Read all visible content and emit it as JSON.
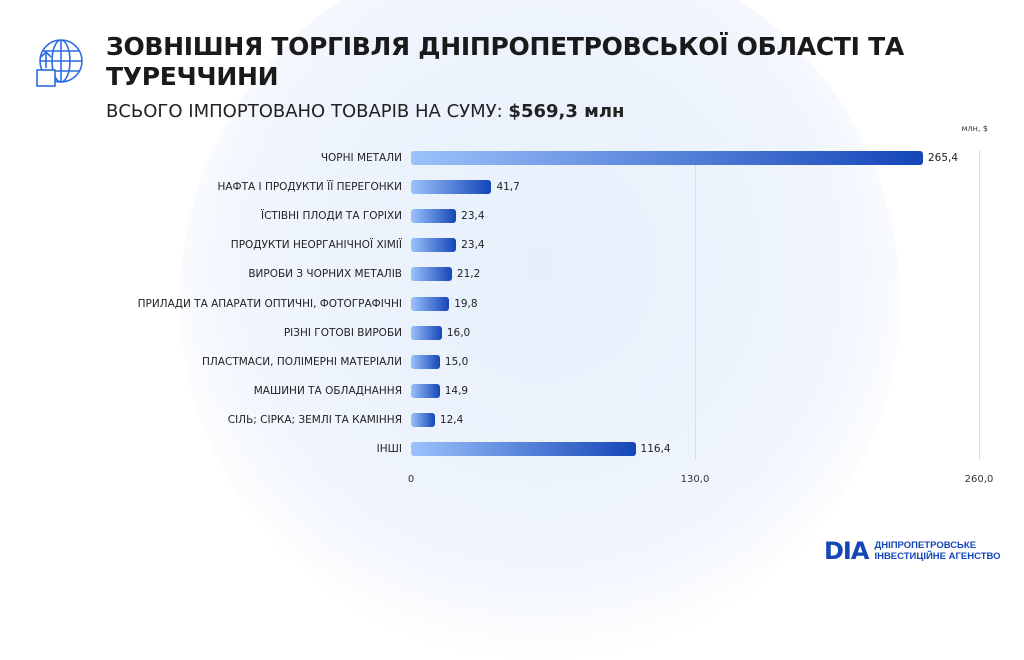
{
  "header": {
    "title": "ЗОВНІШНЯ ТОРГІВЛЯ ДНІПРОПЕТРОВСЬКОЇ ОБЛАСТІ ТА ТУРЕЧЧИНИ",
    "subtitle_prefix": "ВСЬОГО ІМПОРТОВАНО ТОВАРІВ НА СУМУ:",
    "subtitle_value": "$569,3 млн",
    "icon": "globe-upload-box-icon"
  },
  "logo": {
    "mark": "DIA",
    "line1": "ДНІПРОПЕТРОВСЬКЕ",
    "line2": "ІНВЕСТИЦІЙНЕ АГЕНСТВО"
  },
  "chart_data": {
    "type": "bar",
    "orientation": "horizontal",
    "unit": "млн, $",
    "categories": [
      "ЧОРНІ МЕТАЛИ",
      "НАФТА І ПРОДУКТИ ЇЇ ПЕРЕГОНКИ",
      "ЇСТІВНІ ПЛОДИ ТА ГОРІХИ",
      "ПРОДУКТИ НЕОРГАНІЧНОЇ ХІМІЇ",
      "ВИРОБИ З ЧОРНИХ МЕТАЛІВ",
      "ПРИЛАДИ ТА АПАРАТИ ОПТИЧНІ, ФОТОГРАФІЧНІ",
      "РІЗНІ ГОТОВІ ВИРОБИ",
      "ПЛАСТМАСИ, ПОЛІМЕРНІ МАТЕРІАЛИ",
      "МАШИНИ ТА ОБЛАДНАННЯ",
      "СІЛЬ; СІРКА; ЗЕМЛІ ТА КАМІННЯ",
      "ІНШІ"
    ],
    "values": [
      265.4,
      41.7,
      23.4,
      23.4,
      21.2,
      19.8,
      16.0,
      15.0,
      14.9,
      12.4,
      116.4
    ],
    "data_labels": [
      "265,4",
      "41,7",
      "23,4",
      "23,4",
      "21,2",
      "19,8",
      "16,0",
      "15,0",
      "14,9",
      "12,4",
      "116,4"
    ],
    "ticks": [
      "0",
      "130,0",
      "260,0"
    ],
    "xlim": [
      0,
      260
    ],
    "grid": true,
    "colors": {
      "bar_start": "#9cc2fb",
      "bar_end": "#1446b8"
    }
  }
}
